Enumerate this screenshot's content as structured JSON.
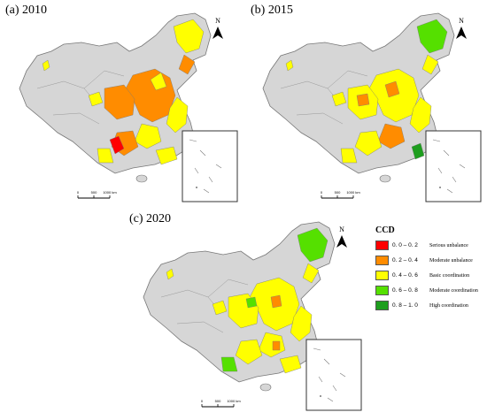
{
  "panels": [
    {
      "label": "(a) 2010"
    },
    {
      "label": "(b) 2015"
    },
    {
      "label": "(c) 2020"
    }
  ],
  "north_label": "N",
  "scale_bar": {
    "ticks": [
      "0",
      "500",
      "1000 km"
    ]
  },
  "legend": {
    "title": "CCD",
    "items": [
      {
        "range": "0. 0 – 0. 2",
        "label": "Serious unbalance",
        "color": "#ff0000"
      },
      {
        "range": "0. 2 – 0. 4",
        "label": "Moderate unbalance",
        "color": "#ff8c00"
      },
      {
        "range": "0. 4 – 0. 6",
        "label": "Basic coordination",
        "color": "#ffff00"
      },
      {
        "range": "0. 6 – 0. 8",
        "label": "Moderate coordination",
        "color": "#55e000"
      },
      {
        "range": "0. 8 – 1. 0",
        "label": "High coordination",
        "color": "#1e9e1e"
      }
    ]
  },
  "colors": {
    "base_gray": "#d6d6d6",
    "border": "#777777",
    "background": "#ffffff"
  }
}
